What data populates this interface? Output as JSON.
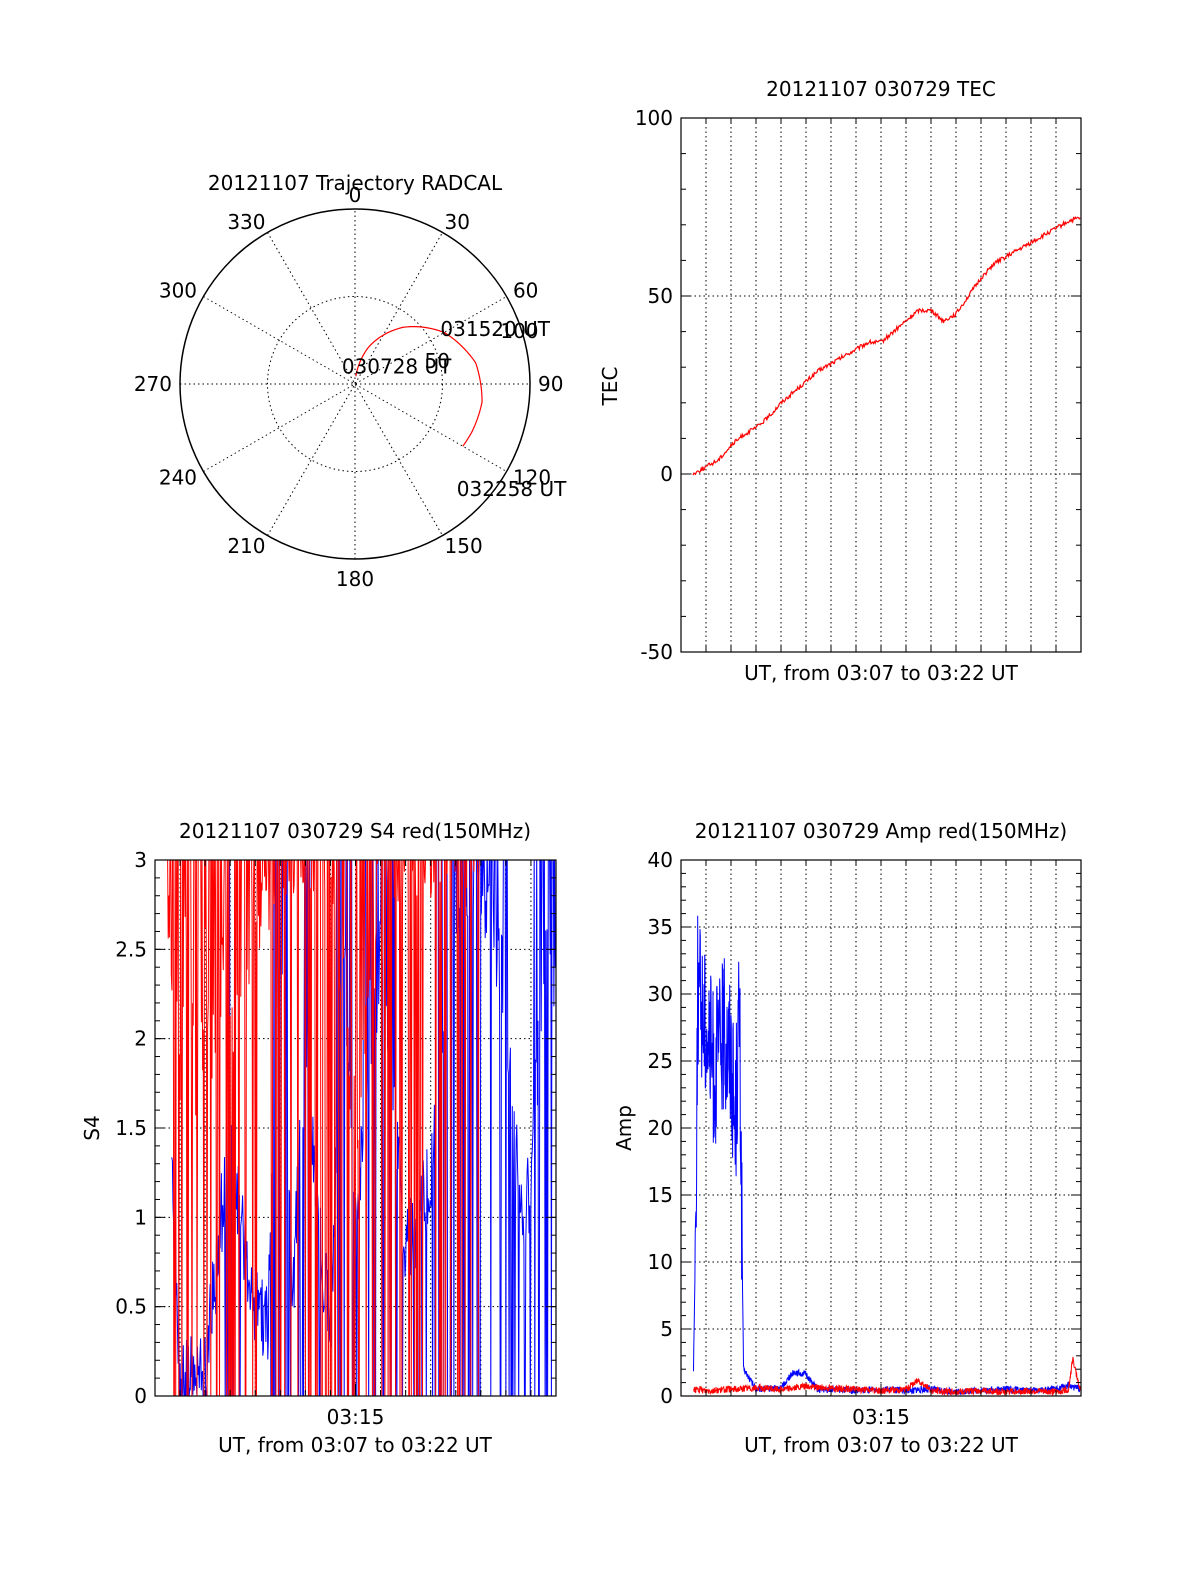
{
  "chart_data": [
    {
      "type": "polar",
      "title": "20121107 Trajectory RADCAL",
      "angle_labels": [
        "0",
        "30",
        "60",
        "90",
        "120",
        "150",
        "180",
        "210",
        "240",
        "270",
        "300",
        "330"
      ],
      "radius_labels": [
        "50",
        "100"
      ],
      "rlim": [
        0,
        100
      ],
      "grid": true,
      "series": [
        {
          "color": "#ff0000",
          "points": [
            {
              "azimuth": 6,
              "elevation": 86
            },
            {
              "azimuth": 20,
              "elevation": 70
            },
            {
              "azimuth": 40,
              "elevation": 52
            },
            {
              "azimuth": 60,
              "elevation": 37
            },
            {
              "azimuth": 80,
              "elevation": 27
            },
            {
              "azimuth": 98,
              "elevation": 24
            },
            {
              "azimuth": 112,
              "elevation": 25
            },
            {
              "azimuth": 120,
              "elevation": 26
            }
          ]
        }
      ],
      "annotations": [
        {
          "text": "030728 UT",
          "azimuth": 6,
          "elevation": 86
        },
        {
          "text": "031520 UT",
          "azimuth": 72,
          "elevation": 33
        },
        {
          "text": "032258 UT",
          "azimuth": 120,
          "elevation": 26
        }
      ]
    },
    {
      "type": "line",
      "title": "20121107 030729 TEC",
      "xlabel": "UT, from 03:07 to 03:22 UT",
      "ylabel": "TEC",
      "xlim": [
        "03:07:00",
        "03:23:00"
      ],
      "ylim": [
        -50,
        100
      ],
      "yticks": [
        "-50",
        "0",
        "50",
        "100"
      ],
      "grid": true,
      "series": [
        {
          "color": "#ff0000",
          "x": [
            "03:07:29",
            "03:08:00",
            "03:08:30",
            "03:09:00",
            "03:09:30",
            "03:10:00",
            "03:10:30",
            "03:11:00",
            "03:11:30",
            "03:12:00",
            "03:12:30",
            "03:13:00",
            "03:13:30",
            "03:14:00",
            "03:14:30",
            "03:15:00",
            "03:15:30",
            "03:16:00",
            "03:16:30",
            "03:17:00",
            "03:17:30",
            "03:18:00",
            "03:18:30",
            "03:19:00",
            "03:19:30",
            "03:20:00",
            "03:20:30",
            "03:21:00",
            "03:21:30",
            "03:22:00",
            "03:22:30",
            "03:22:58"
          ],
          "y": [
            0,
            2,
            4,
            8,
            11,
            13,
            16,
            20,
            23,
            26,
            29,
            31,
            33,
            35,
            37,
            37,
            40,
            43,
            46,
            46,
            43,
            45,
            50,
            55,
            59,
            61,
            63,
            65,
            67,
            69,
            71,
            72
          ]
        }
      ]
    },
    {
      "type": "line",
      "title": "20121107 030729 S4 red(150MHz)",
      "xlabel": "UT, from 03:07 to 03:22 UT",
      "ylabel": "S4",
      "xlim": [
        "03:07:00",
        "03:23:00"
      ],
      "ylim": [
        0,
        3
      ],
      "xticks": [
        "03:15"
      ],
      "yticks": [
        "0",
        "0.5",
        "1",
        "1.5",
        "2",
        "2.5",
        "3"
      ],
      "grid": true,
      "series": [
        {
          "color": "#0000ff",
          "x": [
            "03:07:40",
            "03:08:00",
            "03:08:20",
            "03:08:40",
            "03:09:00",
            "03:10:00",
            "03:10:10",
            "03:11:00",
            "03:11:30",
            "03:12:00",
            "03:12:30",
            "03:13:00",
            "03:13:30",
            "03:14:00",
            "03:14:30",
            "03:15:00",
            "03:16:00",
            "03:17:00",
            "03:18:00",
            "03:19:00",
            "03:20:00",
            "03:20:30",
            "03:21:00",
            "03:21:20",
            "03:21:40",
            "03:22:00",
            "03:22:20",
            "03:22:40",
            "03:22:58"
          ],
          "y": [
            1.2,
            0.1,
            0.08,
            0.1,
            0.12,
            1.5,
            1.2,
            0.5,
            0.42,
            2.5,
            0.6,
            2.0,
            1.0,
            0.35,
            2.6,
            1.0,
            2.5,
            0.8,
            1.2,
            2.8,
            2.9,
            2.6,
            2.2,
            1.4,
            1.0,
            1.2,
            2.0,
            2.5,
            2.4
          ]
        },
        {
          "color": "#ff0000",
          "x": [
            "03:07:30",
            "03:07:45",
            "03:08:00",
            "03:08:15",
            "03:08:30",
            "03:08:45",
            "03:09:00",
            "03:09:15",
            "03:09:30",
            "03:09:45",
            "03:10:00",
            "03:10:30",
            "03:11:00",
            "03:12:00",
            "03:13:00",
            "03:14:00",
            "03:15:00",
            "03:16:00",
            "03:17:00",
            "03:18:00",
            "03:19:00",
            "03:20:00"
          ],
          "y": [
            2.7,
            2.3,
            1.8,
            2.6,
            2.1,
            1.5,
            2.4,
            2.0,
            1.9,
            2.7,
            2.2,
            2.0,
            2.6,
            3.0,
            3.0,
            3.0,
            1.5,
            3.0,
            3.0,
            3.0,
            3.0,
            3.0
          ]
        }
      ]
    },
    {
      "type": "line",
      "title": "20121107 030729 Amp red(150MHz)",
      "xlabel": "UT, from 03:07 to 03:22 UT",
      "ylabel": "Amp",
      "xlim": [
        "03:07:00",
        "03:23:00"
      ],
      "ylim": [
        0,
        40
      ],
      "xticks": [
        "03:15"
      ],
      "yticks": [
        "0",
        "5",
        "10",
        "15",
        "20",
        "25",
        "30",
        "35",
        "40"
      ],
      "grid": true,
      "series": [
        {
          "color": "#0000ff",
          "x": [
            "03:07:30",
            "03:07:35",
            "03:07:40",
            "03:08:00",
            "03:08:20",
            "03:08:40",
            "03:09:00",
            "03:09:10",
            "03:09:20",
            "03:09:30",
            "03:10:00",
            "03:11:00",
            "03:11:30",
            "03:12:00",
            "03:12:30",
            "03:13:00",
            "03:14:00",
            "03:15:00",
            "03:16:00",
            "03:17:00",
            "03:18:00",
            "03:19:00",
            "03:20:00",
            "03:21:00",
            "03:22:00",
            "03:22:30",
            "03:22:58"
          ],
          "y": [
            2,
            12,
            30,
            28,
            24,
            27,
            26,
            20,
            29,
            2,
            0.5,
            0.6,
            1.8,
            1.6,
            0.4,
            0.5,
            0.4,
            0.5,
            0.4,
            0.5,
            0.3,
            0.4,
            0.5,
            0.4,
            0.5,
            0.8,
            0.5
          ]
        },
        {
          "color": "#ff0000",
          "x": [
            "03:07:30",
            "03:08:00",
            "03:09:00",
            "03:10:00",
            "03:11:00",
            "03:12:00",
            "03:13:00",
            "03:14:00",
            "03:15:00",
            "03:16:00",
            "03:16:30",
            "03:17:00",
            "03:18:00",
            "03:19:00",
            "03:20:00",
            "03:21:00",
            "03:22:00",
            "03:22:30",
            "03:22:40",
            "03:22:58"
          ],
          "y": [
            0.5,
            0.4,
            0.5,
            0.6,
            0.5,
            0.7,
            0.6,
            0.5,
            0.4,
            0.5,
            1.2,
            0.4,
            0.3,
            0.4,
            0.3,
            0.4,
            0.3,
            0.5,
            2.8,
            0.4
          ]
        }
      ]
    }
  ]
}
